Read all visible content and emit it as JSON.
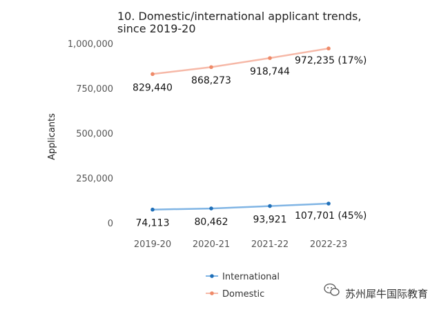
{
  "chart_data": {
    "type": "line",
    "title_lines": [
      "10. Domestic/international applicant trends,",
      "since 2019-20"
    ],
    "ylabel": "Applicants",
    "xlabel": "",
    "categories": [
      "2019-20",
      "2020-21",
      "2021-22",
      "2022-23"
    ],
    "ylim": [
      0,
      1000000
    ],
    "yticks": [
      0,
      250000,
      500000,
      750000,
      1000000
    ],
    "ytick_labels": [
      "0",
      "250,000",
      "500,000",
      "750,000",
      "1,000,000"
    ],
    "grid": false,
    "legend_position": "bottom",
    "series": [
      {
        "name": "International",
        "values": [
          74113,
          80462,
          93921,
          107701
        ],
        "value_labels": [
          "74,113",
          "80,462",
          "93,921",
          "107,701 (45%)"
        ],
        "line_color": "#7fb4e4",
        "marker_color": "#1f6fb8"
      },
      {
        "name": "Domestic",
        "values": [
          829440,
          868273,
          918744,
          972235
        ],
        "value_labels": [
          "829,440",
          "868,273",
          "918,744",
          "972,235 (17%)"
        ],
        "line_color": "#f6b8a7",
        "marker_color": "#ef8a68"
      }
    ]
  },
  "watermark": {
    "text": "苏州犀牛国际教育",
    "icon": "wechat-icon"
  }
}
